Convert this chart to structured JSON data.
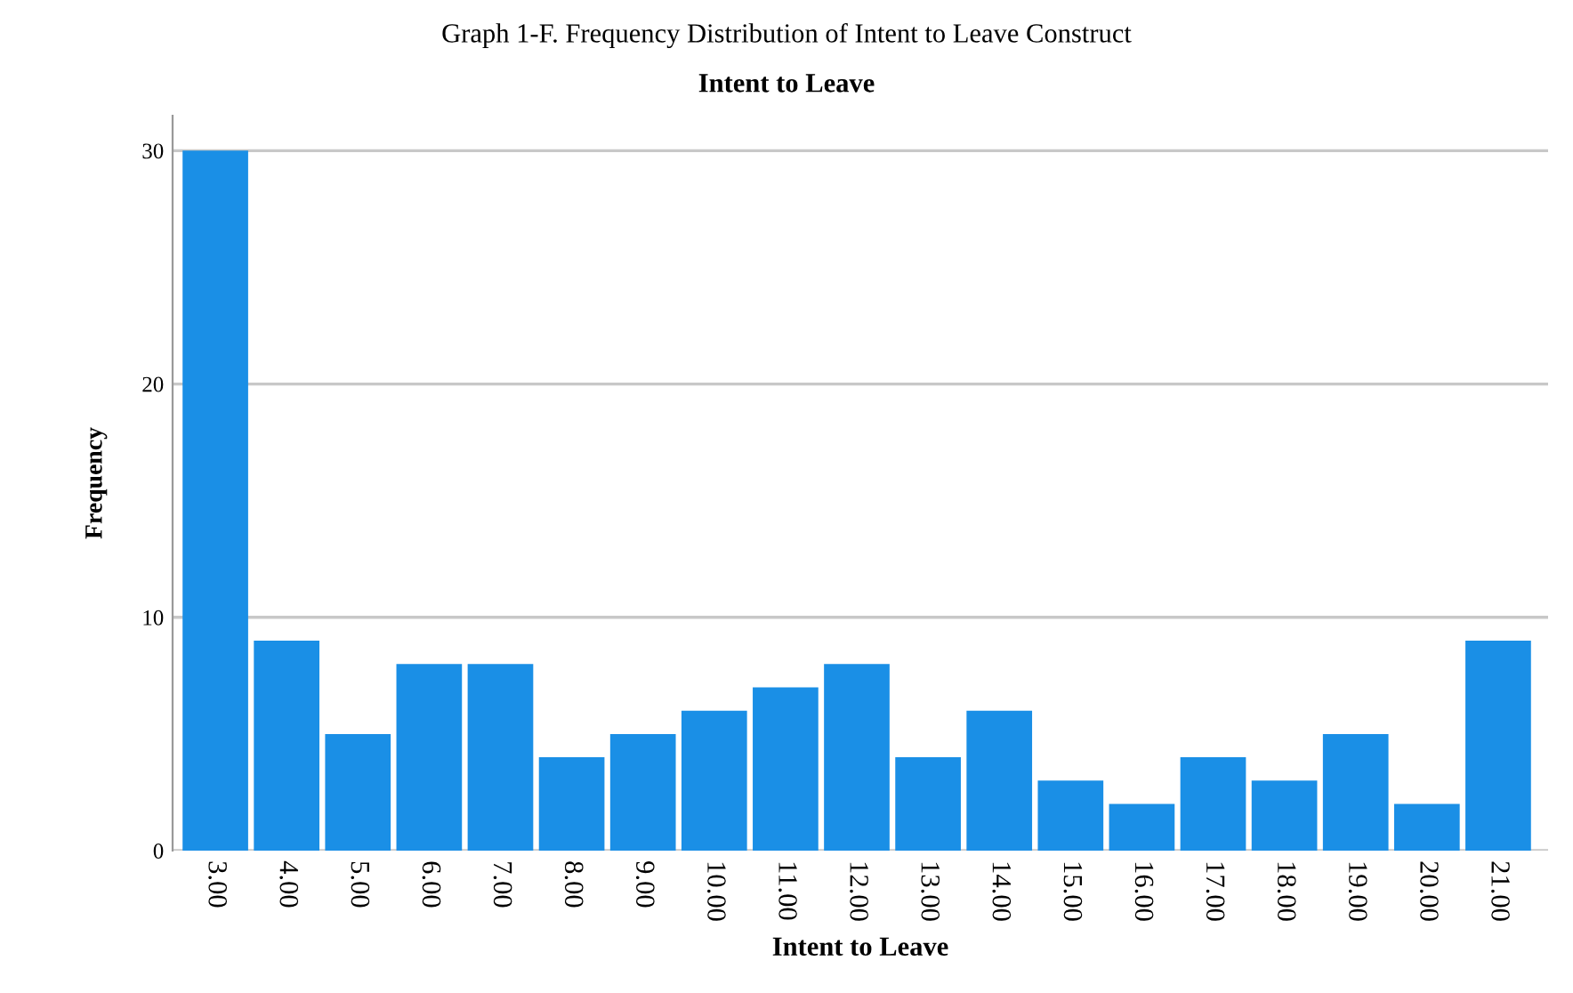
{
  "chart_data": {
    "type": "bar",
    "title": "Graph 1-F. Frequency Distribution of Intent to Leave Construct",
    "subtitle": "Intent to Leave",
    "xlabel": "Intent to Leave",
    "ylabel": "Frequency",
    "categories": [
      "3.00",
      "4.00",
      "5.00",
      "6.00",
      "7.00",
      "8.00",
      "9.00",
      "10.00",
      "11.00",
      "12.00",
      "13.00",
      "14.00",
      "15.00",
      "16.00",
      "17.00",
      "18.00",
      "19.00",
      "20.00",
      "21.00"
    ],
    "values": [
      30,
      9,
      5,
      8,
      8,
      4,
      5,
      6,
      7,
      8,
      4,
      6,
      3,
      2,
      4,
      3,
      5,
      2,
      9
    ],
    "color": "#1a8fe6",
    "ylim": [
      0,
      31.5
    ],
    "yticks": [
      0,
      10,
      20,
      30
    ],
    "grid": "y"
  }
}
